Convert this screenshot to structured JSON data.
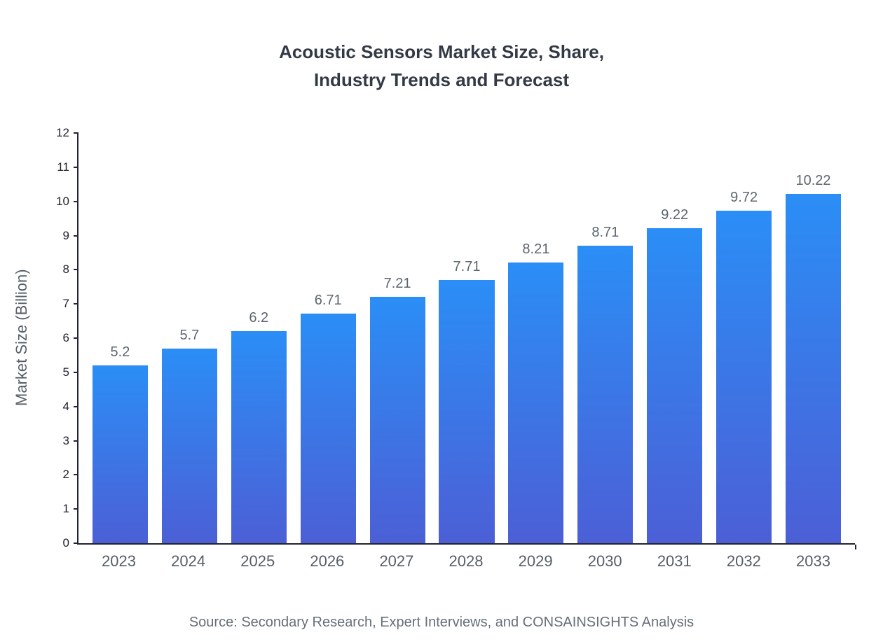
{
  "chart_data": {
    "type": "bar",
    "title": "Acoustic Sensors Market Size, Share,\nIndustry Trends and Forecast",
    "categories": [
      "2023",
      "2024",
      "2025",
      "2026",
      "2027",
      "2028",
      "2029",
      "2030",
      "2031",
      "2032",
      "2033"
    ],
    "values": [
      5.2,
      5.7,
      6.2,
      6.71,
      7.21,
      7.71,
      8.21,
      8.71,
      9.22,
      9.72,
      10.22
    ],
    "xlabel": "",
    "ylabel": "Market Size (Billion)",
    "ylim": [
      0,
      12
    ],
    "ytick_step": 1,
    "grid": false,
    "legend": "none",
    "bar_color_top": "#2B8EF6",
    "bar_color_bottom": "#4C5FD6",
    "axis_color": "#20242e",
    "value_label_color": "#5c6670"
  },
  "source": "Source: Secondary Research, Expert Interviews, and CONSAINSIGHTS Analysis"
}
